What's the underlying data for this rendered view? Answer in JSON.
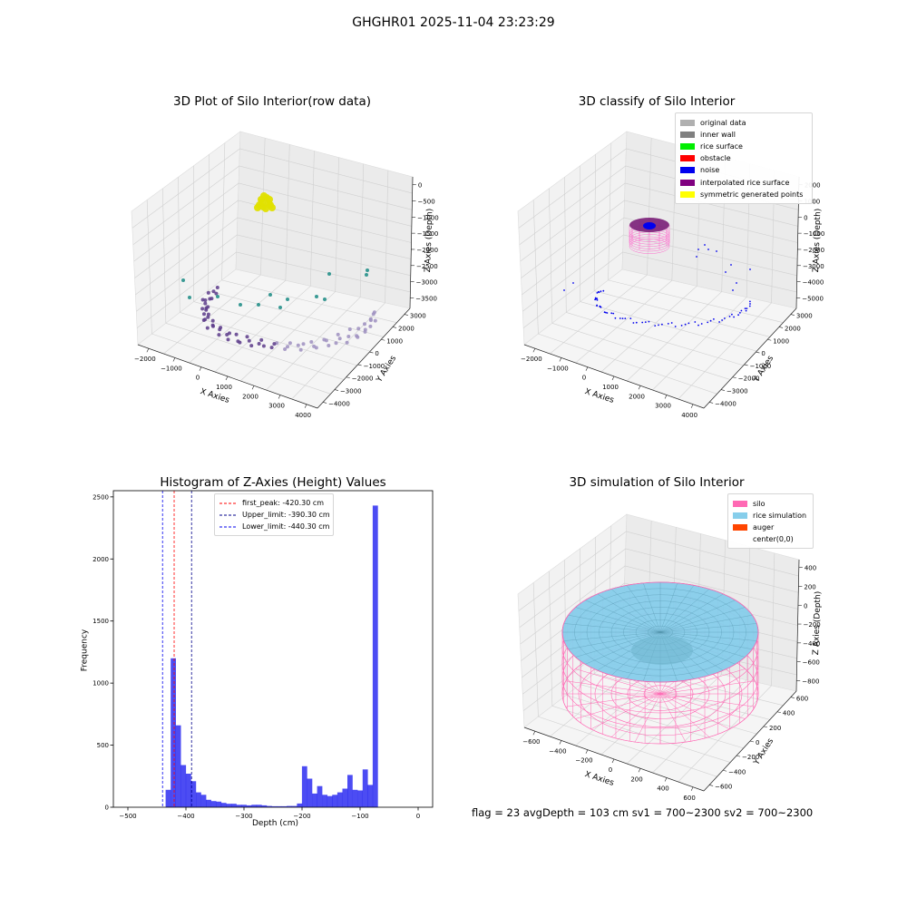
{
  "figure_title": "GHGHR01 2025-11-04 23:23:29",
  "status_line": "flag = 23   avgDepth = 103 cm  sv1 = 700~2300  sv2 = 700~2300",
  "chart_data": [
    {
      "type": "scatter",
      "id": "raw",
      "title": "3D Plot of Silo Interior(row data)",
      "xlabel": "X Axies",
      "ylabel": "Y Axies",
      "zlabel": "Z Axies (Depth)",
      "x_ticks": [
        "−2000",
        "−1000",
        "0",
        "1000",
        "2000",
        "3000",
        "4000"
      ],
      "y_ticks": [
        "−4000",
        "−3000",
        "−2000",
        "−1000",
        "0",
        "1000",
        "2000",
        "3000"
      ],
      "z_ticks": [
        "0",
        "−500",
        "−1000",
        "−1500",
        "−2000",
        "−2500",
        "−3000",
        "−3500"
      ],
      "colors": {
        "surface": "#e0e000",
        "wall": "#5c3b8a",
        "mid": "#26908a",
        "light": "#9e8fc0"
      }
    },
    {
      "type": "scatter",
      "id": "classify",
      "title": "3D classify of Silo Interior",
      "xlabel": "X Axies",
      "ylabel": "Y Axies",
      "zlabel": "Z Axies (Depth)",
      "x_ticks": [
        "−2000",
        "−1000",
        "0",
        "1000",
        "2000",
        "3000",
        "4000"
      ],
      "y_ticks": [
        "−4000",
        "−3000",
        "−2000",
        "−1000",
        "0",
        "1000",
        "2000",
        "3000"
      ],
      "z_ticks": [
        "2000",
        "1000",
        "0",
        "−1000",
        "−2000",
        "−3000",
        "−4000",
        "−5000"
      ],
      "legend": [
        {
          "label": "original data",
          "color": "#b0b0b0"
        },
        {
          "label": "inner wall",
          "color": "#808080"
        },
        {
          "label": "rice surface",
          "color": "#00ee00"
        },
        {
          "label": "obstacle",
          "color": "#ff0000"
        },
        {
          "label": "noise",
          "color": "#0000ee"
        },
        {
          "label": "interpolated rice surface",
          "color": "#800080"
        },
        {
          "label": "symmetric generated points",
          "color": "#ffff00"
        }
      ],
      "colors": {
        "ring_top": "#7a1f78",
        "ring_wire": "#ff66cc",
        "noise": "#0000ee"
      }
    },
    {
      "type": "bar",
      "id": "histogram",
      "title": "Histogram of Z-Axies (Height) Values",
      "xlabel": "Depth (cm)",
      "ylabel": "Frequency",
      "xlim": [
        -525,
        25
      ],
      "ylim": [
        0,
        2550
      ],
      "x_ticks": [
        -500,
        -400,
        -300,
        -200,
        -100,
        0
      ],
      "x_tick_labels": [
        "−500",
        "−400",
        "−300",
        "−200",
        "−100",
        "0"
      ],
      "y_ticks": [
        0,
        500,
        1000,
        1500,
        2000,
        2500
      ],
      "bin_start": -435,
      "bin_width": 8.7,
      "values": [
        140,
        1200,
        660,
        340,
        270,
        210,
        120,
        100,
        60,
        50,
        45,
        35,
        28,
        28,
        20,
        20,
        15,
        20,
        20,
        15,
        10,
        8,
        8,
        8,
        10,
        10,
        30,
        330,
        230,
        110,
        170,
        100,
        90,
        100,
        120,
        150,
        260,
        140,
        135,
        305,
        180,
        2430
      ],
      "bar_color": "#0000ee",
      "vlines": [
        {
          "x": -420.3,
          "label": "first_peak: -420.30 cm",
          "color": "#ff0000"
        },
        {
          "x": -390.3,
          "label": "Upper_limit: -390.30 cm",
          "color": "#00008b"
        },
        {
          "x": -440.3,
          "label": "Lower_limit: -440.30 cm",
          "color": "#0000ee"
        }
      ]
    },
    {
      "type": "area",
      "id": "simulation",
      "title": "3D simulation of Silo Interior",
      "xlabel": "X Axies",
      "ylabel": "Y Axies",
      "zlabel": "Z Axies (Depth)",
      "x_ticks": [
        "−600",
        "−400",
        "−200",
        "0",
        "200",
        "400",
        "600"
      ],
      "y_ticks": [
        "−600",
        "−400",
        "−200",
        "0",
        "200",
        "400",
        "600"
      ],
      "z_ticks": [
        "400",
        "200",
        "0",
        "−200",
        "−400",
        "−600",
        "−800"
      ],
      "legend": [
        {
          "label": "silo",
          "color": "#ff69b4"
        },
        {
          "label": "rice simulation",
          "color": "#87ceeb"
        },
        {
          "label": "auger",
          "color": "#ff4500"
        },
        {
          "label": "center(0,0)",
          "color": ""
        }
      ]
    }
  ]
}
